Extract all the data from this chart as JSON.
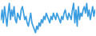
{
  "values": [
    5,
    8,
    4,
    9,
    6,
    3,
    7,
    10,
    5,
    8,
    6,
    9,
    5,
    4,
    7,
    6,
    5,
    8,
    9,
    7,
    5,
    6,
    4,
    3,
    5,
    7,
    4,
    3,
    2,
    1,
    3,
    2,
    4,
    3,
    5,
    4,
    6,
    5,
    7,
    6,
    5,
    4,
    6,
    5,
    7,
    6,
    5,
    7,
    6,
    5,
    4,
    6,
    5,
    7,
    8,
    6,
    5,
    7,
    6,
    5,
    8,
    10,
    4,
    8,
    3,
    9,
    5,
    7,
    6,
    8,
    9,
    7,
    10,
    6,
    8,
    5,
    7,
    9,
    6,
    8
  ],
  "line_color": "#3a9de0",
  "bg_color": "#ffffff",
  "linewidth": 1.2
}
